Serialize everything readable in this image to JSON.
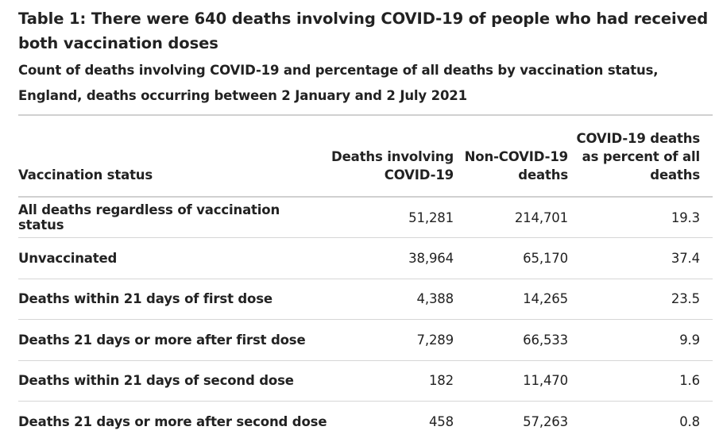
{
  "table": {
    "title": "Table 1: There were 640 deaths involving COVID-19 of people who had received both vaccination doses",
    "subtitle": "Count of deaths involving COVID-19 and percentage of all deaths by vaccination status, England, deaths occurring between 2 January and 2 July 2021",
    "headers": {
      "status": "Vaccination status",
      "covid_deaths": "Deaths involving COVID-19",
      "non_covid_deaths": "Non-COVID-19 deaths",
      "percent": "COVID-19 deaths as percent of all deaths"
    },
    "rows": [
      {
        "status": "All deaths regardless of vaccination status",
        "covid_deaths": "51,281",
        "non_covid_deaths": "214,701",
        "percent": "19.3"
      },
      {
        "status": "Unvaccinated",
        "covid_deaths": "38,964",
        "non_covid_deaths": "65,170",
        "percent": "37.4"
      },
      {
        "status": "Deaths within 21 days of first dose",
        "covid_deaths": "4,388",
        "non_covid_deaths": "14,265",
        "percent": "23.5"
      },
      {
        "status": "Deaths 21 days or more after first dose",
        "covid_deaths": "7,289",
        "non_covid_deaths": "66,533",
        "percent": "9.9"
      },
      {
        "status": "Deaths within 21 days of second dose",
        "covid_deaths": "182",
        "non_covid_deaths": "11,470",
        "percent": "1.6"
      },
      {
        "status": "Deaths 21 days or more after second dose",
        "covid_deaths": "458",
        "non_covid_deaths": "57,263",
        "percent": "0.8"
      }
    ]
  }
}
